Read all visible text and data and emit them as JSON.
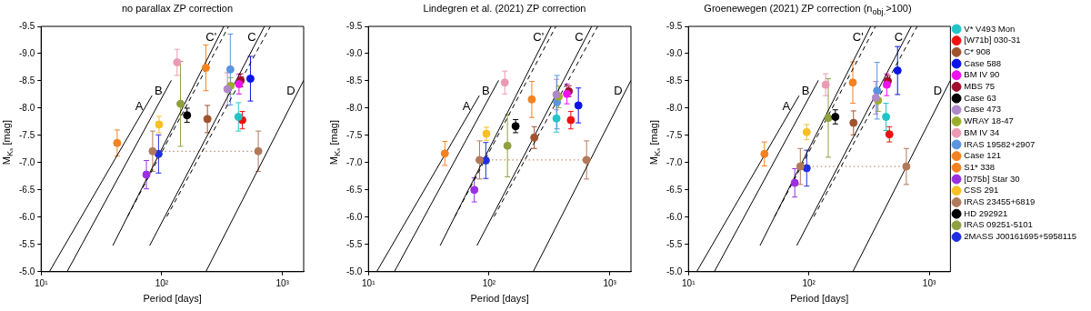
{
  "chart_data": [
    {
      "type": "scatter",
      "title": "no parallax ZP correction",
      "xlabel": "Period [days]",
      "ylabel": "M$_{Kₛ}$ [mag]",
      "log": "x",
      "grid": false,
      "legend": false,
      "marker": "circle",
      "xlim": [
        10,
        1500
      ],
      "xticks": [
        {
          "value": 10,
          "label": "10¹"
        },
        {
          "value": 100,
          "label": "10²"
        },
        {
          "value": 1000,
          "label": "10³"
        }
      ],
      "ylim": [
        -5,
        -9.5
      ],
      "yticks": [
        {
          "value": -5,
          "label": "-5.0"
        },
        -5.5,
        {
          "value": -6,
          "label": "-6.0"
        },
        -6.5,
        {
          "value": -7,
          "label": "-7.0"
        },
        -7.5,
        {
          "value": -8,
          "label": "-8.0"
        },
        -8.5,
        {
          "value": -9,
          "label": "-9.0"
        },
        -9.5
      ],
      "series": [
        {
          "type": "line",
          "name": "A",
          "color": "#000000",
          "marker": "none",
          "line_style": "solid",
          "x": [
            11.7,
            83
          ],
          "values": [
            -5.0,
            -8.23
          ]
        },
        {
          "type": "line",
          "name": "B",
          "color": "#000000",
          "marker": "none",
          "line_style": "solid",
          "x": [
            16.4,
            120
          ],
          "values": [
            -5.0,
            -8.51
          ]
        },
        {
          "type": "line",
          "name": "C'",
          "color": "#000000",
          "marker": "none",
          "line_style": "solid",
          "x": [
            39.3,
            327
          ],
          "values": [
            -5.48,
            -9.5
          ]
        },
        {
          "type": "line",
          "name": "C",
          "color": "#000000",
          "marker": "none",
          "line_style": "solid",
          "x": [
            79.4,
            710
          ],
          "values": [
            -5.48,
            -9.5
          ]
        },
        {
          "type": "line",
          "name": "D",
          "color": "#000000",
          "marker": "none",
          "line_style": "solid",
          "x": [
            232,
            1500
          ],
          "values": [
            -5.0,
            -8.51
          ]
        },
        {
          "type": "line",
          "color": "#000000",
          "marker": "none",
          "line_style": "dashed",
          "x": [
            52,
            358
          ],
          "values": [
            -6.01,
            -9.5
          ]
        },
        {
          "type": "line",
          "color": "#000000",
          "marker": "none",
          "line_style": "dashed",
          "x": [
            110,
            795
          ],
          "values": [
            -6.01,
            -9.5
          ]
        },
        {
          "type": "line",
          "color": "#b07a5a",
          "marker": "none",
          "line_style": "dotted",
          "x": [
            84,
            631
          ],
          "values": [
            -7.21,
            -7.21
          ]
        },
        {
          "color": "#22c4c8",
          "x": [
            432
          ],
          "values": [
            -7.84
          ],
          "errors": [
            0.26
          ]
        },
        {
          "color": "#ee1111",
          "x": [
            465
          ],
          "values": [
            -7.78
          ],
          "errors": [
            0.16
          ]
        },
        {
          "color": "#a0522d",
          "x": [
            239
          ],
          "values": [
            -7.8
          ],
          "errors": [
            0.25
          ]
        },
        {
          "color": "#0a14e6",
          "x": [
            543
          ],
          "values": [
            -8.54
          ],
          "errors": [
            0.41
          ]
        },
        {
          "color": "#ee11ee",
          "x": [
            437
          ],
          "values": [
            -8.44
          ],
          "errors": [
            0.18
          ]
        },
        {
          "color": "#a0102a",
          "x": [
            451
          ],
          "values": [
            -8.51
          ],
          "errors": [
            0.12
          ]
        },
        {
          "color": "#000000",
          "x": [
            162
          ],
          "values": [
            -7.87
          ],
          "errors": [
            0.13
          ]
        },
        {
          "color": "#b088c8",
          "x": [
            350
          ],
          "values": [
            -8.35
          ],
          "errors": [
            0.3
          ]
        },
        {
          "color": "#9aae2a",
          "x": [
            372
          ],
          "values": [
            -8.41
          ],
          "errors": [
            0.15
          ]
        },
        {
          "color": "#ec9ab4",
          "x": [
            134
          ],
          "values": [
            -8.84
          ],
          "errors": [
            0.24
          ]
        },
        {
          "color": "#5a94e0",
          "x": [
            370
          ],
          "values": [
            -8.71
          ],
          "errors": [
            0.65
          ]
        },
        {
          "color": "#f58220",
          "x": [
            232
          ],
          "values": [
            -8.74
          ],
          "errors": [
            0.42
          ]
        },
        {
          "color": "#f58220",
          "x": [
            42.7
          ],
          "values": [
            -7.36
          ],
          "errors": [
            0.24
          ]
        },
        {
          "color": "#9a30e0",
          "x": [
            74.6
          ],
          "values": [
            -6.78
          ],
          "errors": [
            0.26
          ]
        },
        {
          "color": "#f8c020",
          "x": [
            95
          ],
          "values": [
            -7.7
          ],
          "errors": [
            0.15
          ]
        },
        {
          "color": "#b07a5a",
          "x": [
            84,
            631
          ],
          "values": [
            -7.21,
            -7.21
          ],
          "errors": [
            0.37,
            0.37
          ]
        },
        {
          "color": "#8fa040",
          "x": [
            143
          ],
          "values": [
            -8.08
          ],
          "errors": [
            0.78
          ]
        },
        {
          "color": "#2030e0",
          "x": [
            94
          ],
          "values": [
            -7.16
          ],
          "errors": [
            0.35
          ]
        }
      ]
    },
    {
      "type": "scatter",
      "title": "Lindegren et al. (2021) ZP correction",
      "xlabel": "Period [days]",
      "ylabel": "M$_{Kₛ}$ [mag]",
      "log": "x",
      "grid": false,
      "legend": false,
      "marker": "circle",
      "xlim": [
        10,
        1500
      ],
      "xticks": [
        {
          "value": 10,
          "label": "10¹"
        },
        {
          "value": 100,
          "label": "10²"
        },
        {
          "value": 1000,
          "label": "10³"
        }
      ],
      "ylim": [
        -5,
        -9.5
      ],
      "yticks": [
        {
          "value": -5,
          "label": "-5.0"
        },
        -5.5,
        {
          "value": -6,
          "label": "-6.0"
        },
        -6.5,
        {
          "value": -7,
          "label": "-7.0"
        },
        -7.5,
        {
          "value": -8,
          "label": "-8.0"
        },
        -8.5,
        {
          "value": -9,
          "label": "-9.0"
        },
        -9.5
      ],
      "series": [
        {
          "type": "line",
          "name": "A",
          "color": "#000000",
          "marker": "none",
          "line_style": "solid",
          "x": [
            11.7,
            83
          ],
          "values": [
            -5.0,
            -8.23
          ]
        },
        {
          "type": "line",
          "name": "B",
          "color": "#000000",
          "marker": "none",
          "line_style": "solid",
          "x": [
            16.4,
            120
          ],
          "values": [
            -5.0,
            -8.51
          ]
        },
        {
          "type": "line",
          "name": "C'",
          "color": "#000000",
          "marker": "none",
          "line_style": "solid",
          "x": [
            39.3,
            327
          ],
          "values": [
            -5.48,
            -9.5
          ]
        },
        {
          "type": "line",
          "name": "C",
          "color": "#000000",
          "marker": "none",
          "line_style": "solid",
          "x": [
            79.4,
            710
          ],
          "values": [
            -5.48,
            -9.5
          ]
        },
        {
          "type": "line",
          "name": "D",
          "color": "#000000",
          "marker": "none",
          "line_style": "solid",
          "x": [
            232,
            1500
          ],
          "values": [
            -5.0,
            -8.51
          ]
        },
        {
          "type": "line",
          "color": "#000000",
          "marker": "none",
          "line_style": "dashed",
          "x": [
            52,
            358
          ],
          "values": [
            -6.01,
            -9.5
          ]
        },
        {
          "type": "line",
          "color": "#000000",
          "marker": "none",
          "line_style": "dashed",
          "x": [
            110,
            795
          ],
          "values": [
            -6.01,
            -9.5
          ]
        },
        {
          "type": "line",
          "color": "#b07a5a",
          "marker": "none",
          "line_style": "dotted",
          "x": [
            83.4,
            643
          ],
          "values": [
            -7.05,
            -7.05
          ]
        },
        {
          "color": "#22c4c8",
          "x": [
            362
          ],
          "values": [
            -7.81
          ],
          "errors": [
            0.25
          ]
        },
        {
          "color": "#ee1111",
          "x": [
            476
          ],
          "values": [
            -7.78
          ],
          "errors": [
            0.16
          ]
        },
        {
          "color": "#a0522d",
          "x": [
            237
          ],
          "values": [
            -7.46
          ],
          "errors": [
            0.2
          ]
        },
        {
          "color": "#0a14e6",
          "x": [
            550
          ],
          "values": [
            -8.05
          ],
          "errors": [
            0.32
          ]
        },
        {
          "color": "#ee11ee",
          "x": [
            442
          ],
          "values": [
            -8.26
          ],
          "errors": [
            0.18
          ]
        },
        {
          "color": "#a0102a",
          "x": [
            458
          ],
          "values": [
            -8.31
          ],
          "errors": [
            0.1
          ]
        },
        {
          "color": "#000000",
          "x": [
            166
          ],
          "values": [
            -7.67
          ],
          "errors": [
            0.12
          ]
        },
        {
          "color": "#b088c8",
          "x": [
            362
          ],
          "values": [
            -8.25
          ],
          "errors": [
            0.28
          ]
        },
        {
          "color": "#9aae2a",
          "x": [
            378
          ],
          "values": [
            -8.21
          ],
          "errors": [
            0.2
          ]
        },
        {
          "color": "#ec9ab4",
          "x": [
            135
          ],
          "values": [
            -8.47
          ],
          "errors": [
            0.21
          ]
        },
        {
          "color": "#5a94e0",
          "x": [
            366
          ],
          "values": [
            -8.11
          ],
          "errors": [
            0.49
          ]
        },
        {
          "color": "#f58220",
          "x": [
            226
          ],
          "values": [
            -8.16
          ],
          "errors": [
            0.33
          ]
        },
        {
          "color": "#f58220",
          "x": [
            43
          ],
          "values": [
            -7.17
          ],
          "errors": [
            0.22
          ]
        },
        {
          "color": "#9a30e0",
          "x": [
            75.5
          ],
          "values": [
            -6.5
          ],
          "errors": [
            0.22
          ]
        },
        {
          "color": "#f8c020",
          "x": [
            95
          ],
          "values": [
            -7.53
          ],
          "errors": [
            0.12
          ]
        },
        {
          "color": "#b07a5a",
          "x": [
            83.4,
            643
          ],
          "values": [
            -7.05,
            -7.05
          ],
          "errors": [
            0.35,
            0.35
          ]
        },
        {
          "color": "#8fa040",
          "x": [
            142
          ],
          "values": [
            -7.31
          ],
          "errors": [
            0.57
          ]
        },
        {
          "color": "#2030e0",
          "x": [
            94
          ],
          "values": [
            -7.04
          ],
          "errors": [
            0.33
          ]
        }
      ]
    },
    {
      "type": "scatter",
      "title": "Groenewegen (2021) ZP correction (n$_{obj.}$>100)",
      "xlabel": "Period [days]",
      "ylabel": "M$_{Kₛ}$ [mag]",
      "log": "x",
      "grid": false,
      "legend": "right",
      "marker": "circle",
      "xlim": [
        10,
        1500
      ],
      "xticks": [
        {
          "value": 10,
          "label": "10¹"
        },
        {
          "value": 100,
          "label": "10²"
        },
        {
          "value": 1000,
          "label": "10³"
        }
      ],
      "ylim": [
        -5,
        -9.5
      ],
      "yticks": [
        {
          "value": -5,
          "label": "-5.0"
        },
        -5.5,
        {
          "value": -6,
          "label": "-6.0"
        },
        -6.5,
        {
          "value": -7,
          "label": "-7.0"
        },
        -7.5,
        {
          "value": -8,
          "label": "-8.0"
        },
        -8.5,
        {
          "value": -9,
          "label": "-9.0"
        },
        -9.5
      ],
      "series": [
        {
          "type": "line",
          "name": "A",
          "color": "#000000",
          "marker": "none",
          "line_style": "solid",
          "x": [
            11.7,
            83
          ],
          "values": [
            -5.0,
            -8.23
          ]
        },
        {
          "type": "line",
          "name": "B",
          "color": "#000000",
          "marker": "none",
          "line_style": "solid",
          "x": [
            16.4,
            120
          ],
          "values": [
            -5.0,
            -8.51
          ]
        },
        {
          "type": "line",
          "name": "C'",
          "color": "#000000",
          "marker": "none",
          "line_style": "solid",
          "x": [
            39.3,
            327
          ],
          "values": [
            -5.48,
            -9.5
          ]
        },
        {
          "type": "line",
          "name": "C",
          "color": "#000000",
          "marker": "none",
          "line_style": "solid",
          "x": [
            79.4,
            710
          ],
          "values": [
            -5.48,
            -9.5
          ]
        },
        {
          "type": "line",
          "name": "D",
          "color": "#000000",
          "marker": "none",
          "line_style": "solid",
          "x": [
            232,
            1500
          ],
          "values": [
            -5.0,
            -8.51
          ]
        },
        {
          "type": "line",
          "color": "#000000",
          "marker": "none",
          "line_style": "dashed",
          "x": [
            52,
            358
          ],
          "values": [
            -6.01,
            -9.5
          ]
        },
        {
          "type": "line",
          "color": "#000000",
          "marker": "none",
          "line_style": "dashed",
          "x": [
            110,
            795
          ],
          "values": [
            -6.01,
            -9.5
          ]
        },
        {
          "type": "line",
          "color": "#b07a5a",
          "marker": "none",
          "line_style": "dotted",
          "x": [
            85,
            646
          ],
          "values": [
            -6.93,
            -6.93
          ]
        },
        {
          "name": "V* V493 Mon",
          "color": "#22c4c8",
          "x": [
            438
          ],
          "values": [
            -7.84
          ],
          "errors": [
            0.25
          ]
        },
        {
          "name": "[W71b] 030-31",
          "color": "#ee1111",
          "x": [
            467
          ],
          "values": [
            -7.52
          ],
          "errors": [
            0.14
          ]
        },
        {
          "name": "C* 908",
          "color": "#a0522d",
          "x": [
            235
          ],
          "values": [
            -7.73
          ],
          "errors": [
            0.22
          ]
        },
        {
          "name": "Case 588",
          "color": "#0a14e6",
          "x": [
            546
          ],
          "values": [
            -8.69
          ],
          "errors": [
            0.44
          ]
        },
        {
          "name": "BM IV 90",
          "color": "#ee11ee",
          "x": [
            444
          ],
          "values": [
            -8.43
          ],
          "errors": [
            0.2
          ]
        },
        {
          "name": "MBS 75",
          "color": "#a0102a",
          "x": [
            453
          ],
          "values": [
            -8.5
          ],
          "errors": [
            0.1
          ]
        },
        {
          "name": "Case 63",
          "color": "#000000",
          "x": [
            166
          ],
          "values": [
            -7.84
          ],
          "errors": [
            0.13
          ]
        },
        {
          "name": "Case 473",
          "color": "#b088c8",
          "x": [
            360
          ],
          "values": [
            -8.19
          ],
          "errors": [
            0.3
          ]
        },
        {
          "name": "WRAY 18-47",
          "color": "#9aae2a",
          "x": [
            376
          ],
          "values": [
            -8.14
          ],
          "errors": [
            0.2
          ]
        },
        {
          "name": "BM IV 34",
          "color": "#ec9ab4",
          "x": [
            138
          ],
          "values": [
            -8.43
          ],
          "errors": [
            0.2
          ]
        },
        {
          "name": "IRAS 19582+2907",
          "color": "#5a94e0",
          "x": [
            369
          ],
          "values": [
            -8.32
          ],
          "errors": [
            0.52
          ]
        },
        {
          "name": "Case 121",
          "color": "#f58220",
          "x": [
            232
          ],
          "values": [
            -8.47
          ],
          "errors": [
            0.38
          ]
        },
        {
          "name": "S1* 338",
          "color": "#f58220",
          "x": [
            42.8
          ],
          "values": [
            -7.16
          ],
          "errors": [
            0.22
          ]
        },
        {
          "name": "[D75b] Star 30",
          "color": "#9a30e0",
          "x": [
            76.4
          ],
          "values": [
            -6.63
          ],
          "errors": [
            0.26
          ]
        },
        {
          "name": "CSS 291",
          "color": "#f8c020",
          "x": [
            96
          ],
          "values": [
            -7.56
          ],
          "errors": [
            0.14
          ]
        },
        {
          "name": "IRAS 23455+6819",
          "color": "#b07a5a",
          "x": [
            85,
            646
          ],
          "values": [
            -6.93,
            -6.93
          ],
          "errors": [
            0.33,
            0.33
          ]
        },
        {
          "name": "HD 292921",
          "color": "#000000"
        },
        {
          "name": "IRAS 09251-5101",
          "color": "#8fa040",
          "x": [
            145
          ],
          "values": [
            -7.82
          ],
          "errors": [
            0.72
          ]
        },
        {
          "name": "2MASS J00161695+5958115",
          "color": "#2030e0",
          "x": [
            96
          ],
          "values": [
            -6.9
          ],
          "errors": [
            0.33
          ]
        }
      ]
    }
  ]
}
